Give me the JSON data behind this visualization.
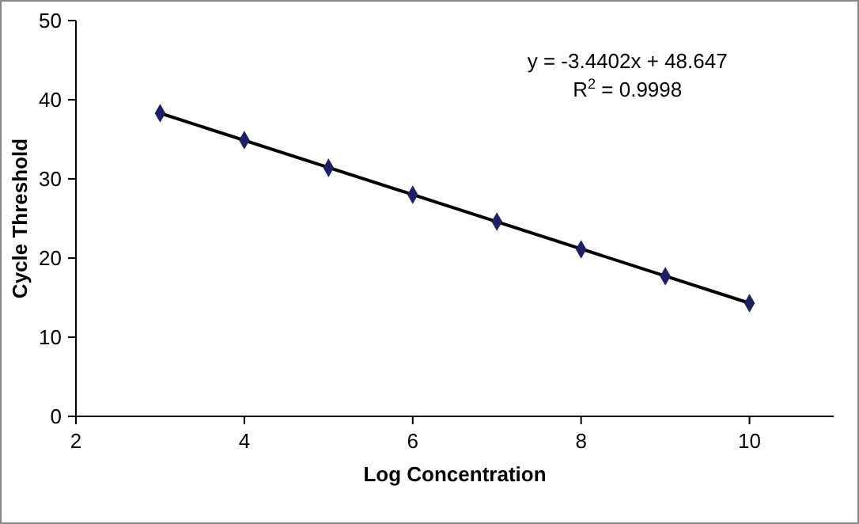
{
  "chart_data": {
    "type": "scatter",
    "xlabel": "Log Concentration",
    "ylabel": "Cycle Threshold",
    "x": [
      3,
      4,
      5,
      6,
      7,
      8,
      9,
      10
    ],
    "series": [
      {
        "color": "#1f1f66",
        "marker": "diamond",
        "values": [
          38.3,
          34.9,
          31.4,
          28.0,
          24.6,
          21.1,
          17.7,
          14.3
        ]
      },
      {
        "type": "line",
        "color": "#000000",
        "x": [
          3,
          10
        ],
        "values": [
          38.3,
          14.3
        ],
        "marker": "none",
        "line_style": "solid"
      }
    ],
    "annotations": [
      "y = -3.4402x + 48.647",
      "R$^{2}$ = 0.9998"
    ],
    "xlim": [
      2,
      11
    ],
    "xticks": [
      2,
      4,
      6,
      8,
      10
    ],
    "ylim": [
      0,
      50
    ],
    "yticks": [
      0,
      10,
      20,
      30,
      40,
      50
    ],
    "grid": false
  }
}
